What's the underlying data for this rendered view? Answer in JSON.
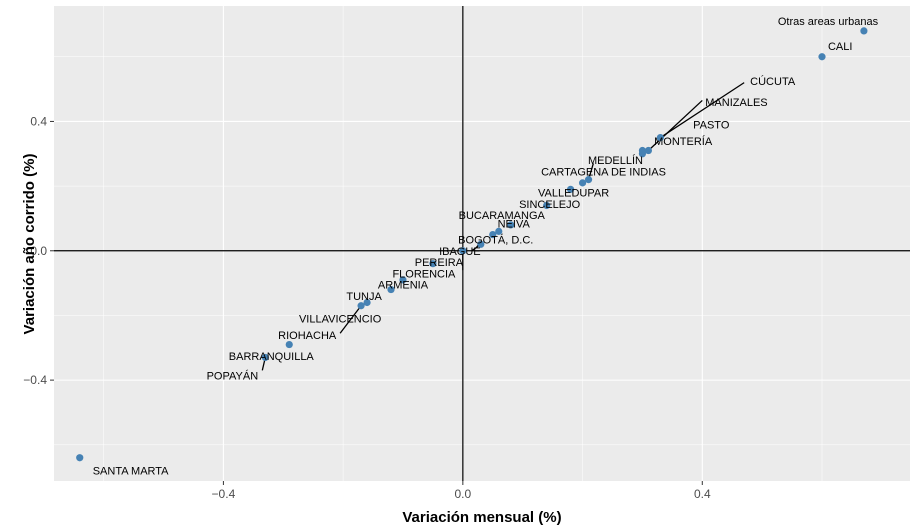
{
  "chart_data": {
    "type": "scatter",
    "xlabel": "Variación mensual (%)",
    "ylabel": "Variación año corrido (%)",
    "xlim": [
      -0.683,
      0.747
    ],
    "ylim": [
      -0.712,
      0.757
    ],
    "x_ticks": [
      -0.4,
      0.0,
      0.4
    ],
    "x_tick_labels": [
      "−0.4",
      "0.0",
      "0.4"
    ],
    "y_ticks": [
      -0.4,
      0.0,
      0.4
    ],
    "y_tick_labels": [
      "−0.4",
      "0.0",
      "0.4"
    ],
    "grid": true,
    "reference_lines": {
      "x": 0,
      "y": 0
    },
    "colors": {
      "panel": "#ebebeb",
      "grid": "#ffffff",
      "point": "#4682b4",
      "reference": "#000000"
    },
    "points": [
      {
        "label": "Otras areas urbanas",
        "x": 0.67,
        "y": 0.68
      },
      {
        "label": "CALI",
        "x": 0.6,
        "y": 0.6
      },
      {
        "label": "CÚCUTA",
        "x": 0.33,
        "y": 0.35
      },
      {
        "label": "MANIZALES",
        "x": 0.31,
        "y": 0.31
      },
      {
        "label": "PASTO",
        "x": 0.3,
        "y": 0.31
      },
      {
        "label": "MONTERÍA",
        "x": 0.3,
        "y": 0.3
      },
      {
        "label": "MEDELLÍN",
        "x": 0.21,
        "y": 0.22
      },
      {
        "label": "CARTAGENA DE INDIAS",
        "x": 0.2,
        "y": 0.21
      },
      {
        "label": "VALLEDUPAR",
        "x": 0.18,
        "y": 0.19
      },
      {
        "label": "SINCELEJO",
        "x": 0.14,
        "y": 0.14
      },
      {
        "label": "BUCARAMANGA",
        "x": 0.08,
        "y": 0.08
      },
      {
        "label": "NEIVA",
        "x": 0.06,
        "y": 0.06
      },
      {
        "label": "BOGOTÁ, D.C.",
        "x": 0.05,
        "y": 0.05
      },
      {
        "label": "IBAGUÉ",
        "x": 0.03,
        "y": 0.02
      },
      {
        "label": "PEREIRA",
        "x": 0.0,
        "y": 0.0
      },
      {
        "label": "FLORENCIA",
        "x": -0.05,
        "y": -0.04
      },
      {
        "label": "ARMENIA",
        "x": -0.1,
        "y": -0.09
      },
      {
        "label": "TUNJA",
        "x": -0.12,
        "y": -0.12
      },
      {
        "label": "VILLAVICENCIO",
        "x": -0.16,
        "y": -0.16
      },
      {
        "label": "RIOHACHA",
        "x": -0.17,
        "y": -0.17
      },
      {
        "label": "BARRANQUILLA",
        "x": -0.29,
        "y": -0.29
      },
      {
        "label": "POPAYÁN",
        "x": -0.33,
        "y": -0.33
      },
      {
        "label": "SANTA MARTA",
        "x": -0.64,
        "y": -0.64
      }
    ],
    "label_positions": [
      {
        "label": "Otras areas urbanas",
        "x": 0.61,
        "y": 0.71,
        "anchor": "middle"
      },
      {
        "label": "CALI",
        "x": 0.61,
        "y": 0.633,
        "anchor": "start"
      },
      {
        "label": "CÚCUTA",
        "x": 0.48,
        "y": 0.525,
        "anchor": "start",
        "line_to": [
          0.47,
          0.52
        ]
      },
      {
        "label": "MANIZALES",
        "x": 0.405,
        "y": 0.46,
        "anchor": "start",
        "line_to": [
          0.4,
          0.465
        ]
      },
      {
        "label": "PASTO",
        "x": 0.415,
        "y": 0.39,
        "anchor": "middle"
      },
      {
        "label": "MONTERÍA",
        "x": 0.368,
        "y": 0.34,
        "anchor": "middle"
      },
      {
        "label": "MEDELLÍN",
        "x": 0.255,
        "y": 0.28,
        "anchor": "middle",
        "line_to": [
          0.218,
          0.27
        ]
      },
      {
        "label": "CARTAGENA DE INDIAS",
        "x": 0.235,
        "y": 0.245,
        "anchor": "middle"
      },
      {
        "label": "VALLEDUPAR",
        "x": 0.185,
        "y": 0.18,
        "anchor": "middle"
      },
      {
        "label": "SINCELEJO",
        "x": 0.145,
        "y": 0.145,
        "anchor": "middle"
      },
      {
        "label": "BUCARAMANGA",
        "x": 0.065,
        "y": 0.11,
        "anchor": "middle"
      },
      {
        "label": "NEIVA",
        "x": 0.085,
        "y": 0.085,
        "anchor": "middle"
      },
      {
        "label": "BOGOTÁ, D.C.",
        "x": 0.055,
        "y": 0.035,
        "anchor": "middle",
        "line_to": [
          0.048,
          0.04
        ]
      },
      {
        "label": "IBAGUÉ",
        "x": -0.005,
        "y": 0.0,
        "anchor": "middle",
        "line_to": [
          0.015,
          0.0
        ]
      },
      {
        "label": "PEREIRA",
        "x": -0.04,
        "y": -0.035,
        "anchor": "middle",
        "line_to": [
          0.0,
          -0.06
        ]
      },
      {
        "label": "FLORENCIA",
        "x": -0.065,
        "y": -0.07,
        "anchor": "middle"
      },
      {
        "label": "ARMENIA",
        "x": -0.1,
        "y": -0.105,
        "anchor": "middle"
      },
      {
        "label": "TUNJA",
        "x": -0.165,
        "y": -0.14,
        "anchor": "middle"
      },
      {
        "label": "VILLAVICENCIO",
        "x": -0.205,
        "y": -0.21,
        "anchor": "middle"
      },
      {
        "label": "RIOHACHA",
        "x": -0.26,
        "y": -0.26,
        "anchor": "middle",
        "line_to": [
          -0.205,
          -0.255
        ]
      },
      {
        "label": "BARRANQUILLA",
        "x": -0.32,
        "y": -0.325,
        "anchor": "middle"
      },
      {
        "label": "POPAYÁN",
        "x": -0.385,
        "y": -0.385,
        "anchor": "middle",
        "line_to": [
          -0.335,
          -0.37
        ]
      },
      {
        "label": "SANTA MARTA",
        "x": -0.555,
        "y": -0.68,
        "anchor": "middle"
      }
    ]
  }
}
